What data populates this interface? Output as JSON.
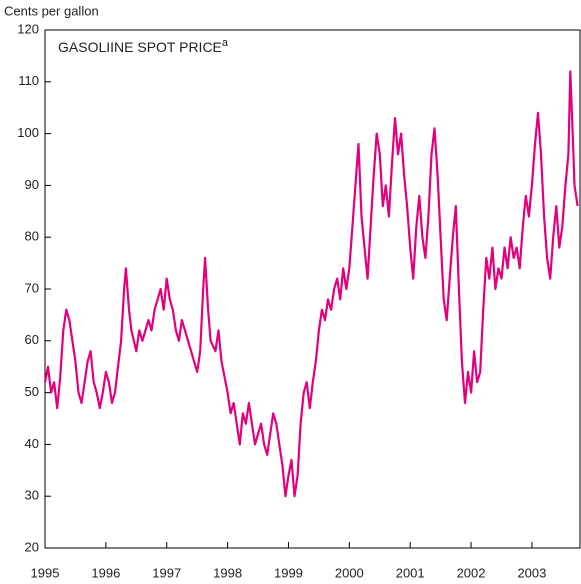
{
  "chart_data": {
    "type": "line",
    "title": "GASOLIINE SPOT PRICE",
    "title_superscript": "a",
    "y_label": "Cents per gallon",
    "color": "#e4007c",
    "xlim": [
      1995,
      2003.79
    ],
    "xticks": [
      1995,
      1996,
      1997,
      1998,
      1999,
      2000,
      2001,
      2002,
      2003
    ],
    "ylim": [
      20,
      120
    ],
    "yticks": [
      20,
      30,
      40,
      50,
      60,
      70,
      80,
      90,
      100,
      110,
      120
    ],
    "x": [
      1995.0,
      1995.05,
      1995.1,
      1995.15,
      1995.2,
      1995.25,
      1995.3,
      1995.35,
      1995.4,
      1995.45,
      1995.5,
      1995.55,
      1995.6,
      1995.65,
      1995.7,
      1995.75,
      1995.8,
      1995.85,
      1995.9,
      1995.95,
      1996.0,
      1996.05,
      1996.1,
      1996.15,
      1996.2,
      1996.25,
      1996.3,
      1996.33,
      1996.38,
      1996.42,
      1996.5,
      1996.55,
      1996.6,
      1996.7,
      1996.75,
      1996.8,
      1996.85,
      1996.9,
      1996.95,
      1997.0,
      1997.05,
      1997.1,
      1997.15,
      1997.2,
      1997.25,
      1997.3,
      1997.35,
      1997.4,
      1997.45,
      1997.5,
      1997.55,
      1997.6,
      1997.63,
      1997.68,
      1997.72,
      1997.8,
      1997.85,
      1997.9,
      1998.0,
      1998.05,
      1998.1,
      1998.15,
      1998.2,
      1998.25,
      1998.3,
      1998.35,
      1998.4,
      1998.45,
      1998.5,
      1998.55,
      1998.6,
      1998.65,
      1998.7,
      1998.75,
      1998.8,
      1998.85,
      1998.9,
      1998.95,
      1999.0,
      1999.05,
      1999.1,
      1999.15,
      1999.2,
      1999.25,
      1999.3,
      1999.35,
      1999.4,
      1999.45,
      1999.5,
      1999.55,
      1999.6,
      1999.65,
      1999.7,
      1999.75,
      1999.8,
      1999.85,
      1999.9,
      1999.95,
      2000.0,
      2000.05,
      2000.1,
      2000.15,
      2000.2,
      2000.25,
      2000.3,
      2000.35,
      2000.4,
      2000.45,
      2000.5,
      2000.55,
      2000.6,
      2000.65,
      2000.7,
      2000.75,
      2000.8,
      2000.85,
      2000.9,
      2000.95,
      2001.0,
      2001.05,
      2001.1,
      2001.15,
      2001.2,
      2001.25,
      2001.3,
      2001.35,
      2001.4,
      2001.45,
      2001.5,
      2001.55,
      2001.6,
      2001.65,
      2001.7,
      2001.75,
      2001.8,
      2001.85,
      2001.9,
      2001.95,
      2002.0,
      2002.05,
      2002.1,
      2002.15,
      2002.2,
      2002.25,
      2002.3,
      2002.35,
      2002.4,
      2002.45,
      2002.5,
      2002.55,
      2002.6,
      2002.65,
      2002.7,
      2002.75,
      2002.8,
      2002.85,
      2002.9,
      2002.95,
      2003.0,
      2003.05,
      2003.1,
      2003.15,
      2003.2,
      2003.25,
      2003.3,
      2003.35,
      2003.4,
      2003.45,
      2003.5,
      2003.55,
      2003.6,
      2003.63,
      2003.67,
      2003.7,
      2003.75
    ],
    "values": [
      52,
      55,
      50,
      52,
      47,
      53,
      62,
      66,
      64,
      60,
      56,
      50,
      48,
      52,
      56,
      58,
      52,
      50,
      47,
      50,
      54,
      52,
      48,
      50,
      55,
      60,
      70,
      74,
      66,
      62,
      58,
      62,
      60,
      64,
      62,
      66,
      68,
      70,
      66,
      72,
      68,
      66,
      62,
      60,
      64,
      62,
      60,
      58,
      56,
      54,
      58,
      70,
      76,
      66,
      60,
      58,
      62,
      56,
      50,
      46,
      48,
      44,
      40,
      46,
      44,
      48,
      44,
      40,
      42,
      44,
      40,
      38,
      42,
      46,
      44,
      40,
      36,
      30,
      34,
      37,
      30,
      34,
      44,
      50,
      52,
      47,
      52,
      56,
      62,
      66,
      64,
      68,
      66,
      70,
      72,
      68,
      74,
      70,
      74,
      82,
      90,
      98,
      84,
      78,
      72,
      82,
      92,
      100,
      96,
      86,
      90,
      84,
      94,
      103,
      96,
      100,
      92,
      86,
      78,
      72,
      82,
      88,
      80,
      76,
      84,
      96,
      101,
      92,
      80,
      68,
      64,
      72,
      80,
      86,
      70,
      56,
      48,
      54,
      50,
      58,
      52,
      54,
      66,
      76,
      72,
      78,
      70,
      74,
      72,
      78,
      74,
      80,
      76,
      78,
      74,
      82,
      88,
      84,
      90,
      98,
      104,
      96,
      84,
      76,
      72,
      80,
      86,
      78,
      82,
      90,
      96,
      112,
      100,
      90,
      86
    ]
  }
}
